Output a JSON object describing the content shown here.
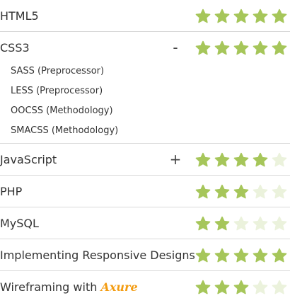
{
  "colors": {
    "star_filled": "#a6c65a",
    "star_empty": "#ebf2dc",
    "divider": "#d9d9d9",
    "text": "#333333",
    "axure_brand": "#f39c12"
  },
  "max_rating": 5,
  "skills": [
    {
      "name": "HTML5",
      "rating": 5,
      "icon": "star-icon"
    },
    {
      "name": "CSS3",
      "rating": 5,
      "toggle": "-",
      "toggle_icon": "collapse-icon",
      "sub_items": [
        "SASS (Preprocessor)",
        "LESS (Preprocessor)",
        "OOCSS (Methodology)",
        "SMACSS (Methodology)"
      ]
    },
    {
      "name": "JavaScript",
      "rating": 4,
      "toggle": "+",
      "toggle_icon": "expand-icon"
    },
    {
      "name": "PHP",
      "rating": 3
    },
    {
      "name": "MySQL",
      "rating": 2
    },
    {
      "name": "Implementing Responsive Designs",
      "rating": 5
    },
    {
      "name": "Wireframing with",
      "brand": "Axure",
      "rating": 3
    }
  ]
}
